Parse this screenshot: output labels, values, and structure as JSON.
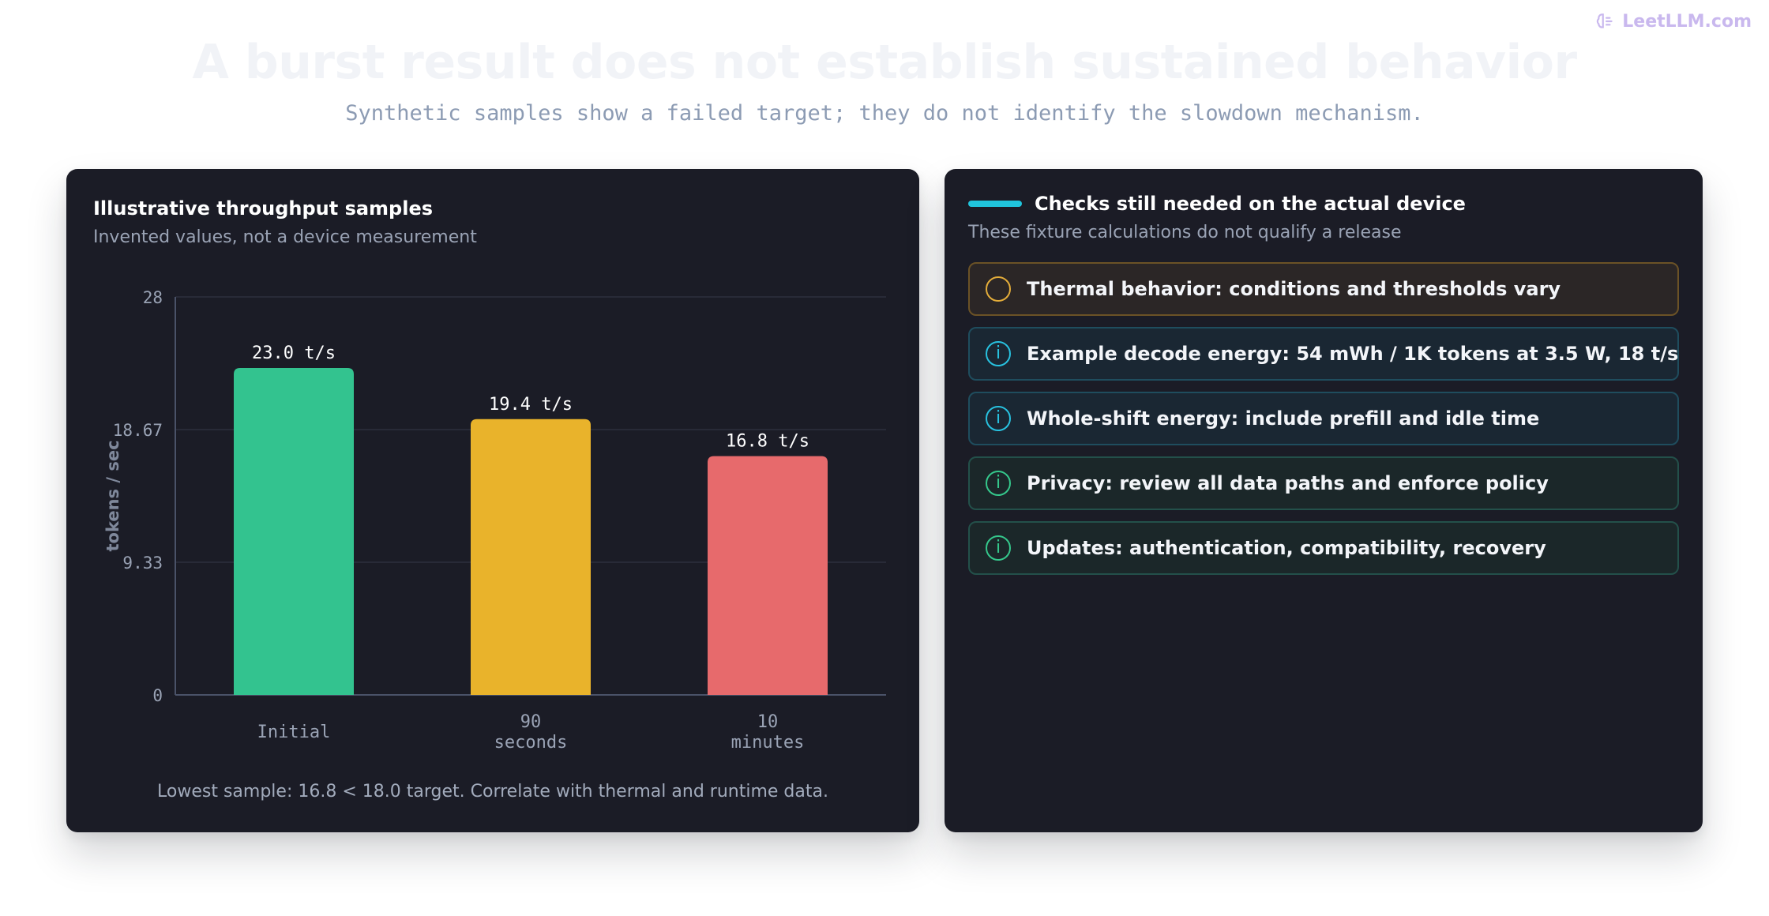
{
  "brand": {
    "label": "LeetLLM.com"
  },
  "header": {
    "title": "A burst result does not establish sustained behavior",
    "subtitle": "Synthetic samples show a failed target; they do not identify the slowdown mechanism."
  },
  "chart_data": {
    "type": "bar",
    "title": "Illustrative throughput samples",
    "subtitle": "Invented values, not a device measurement",
    "ylabel": "tokens / sec",
    "xlabel": "",
    "ylim": [
      0,
      28
    ],
    "yticks": [
      0,
      9.33,
      18.67,
      28
    ],
    "ytick_labels": [
      "0",
      "9.33",
      "18.67",
      "28"
    ],
    "grid": true,
    "categories": [
      [
        "Initial"
      ],
      [
        "90",
        "seconds"
      ],
      [
        "10",
        "minutes"
      ]
    ],
    "values": [
      23.0,
      19.4,
      16.8
    ],
    "data_labels": [
      "23.0 t/s",
      "19.4 t/s",
      "16.8 t/s"
    ],
    "colors": [
      "#33c38f",
      "#e9b32b",
      "#e76a6c"
    ],
    "footnote": "Lowest sample: 16.8 < 18.0 target. Correlate with thermal and runtime data."
  },
  "panel": {
    "title": "Checks still needed on the actual device",
    "subtitle": "These fixture calculations do not qualify a release",
    "accent": "#20c4dc",
    "checks": [
      {
        "text": "Thermal behavior: conditions and thresholds vary",
        "icon": "circle-warning-icon",
        "glyph": "",
        "color": "#e4ad3a",
        "bg": "#2b2626",
        "border": "#6b5226"
      },
      {
        "text": "Example decode energy: 54 mWh / 1K tokens at 3.5 W, 18 t/s",
        "icon": "info-icon",
        "glyph": "i",
        "color": "#28c2e0",
        "bg": "#1a2733",
        "border": "#1f4d5e"
      },
      {
        "text": "Whole-shift energy: include prefill and idle time",
        "icon": "info-icon",
        "glyph": "i",
        "color": "#28c2e0",
        "bg": "#1a2733",
        "border": "#1f4d5e"
      },
      {
        "text": "Privacy: review all data paths and enforce policy",
        "icon": "info-icon",
        "glyph": "i",
        "color": "#35c88c",
        "bg": "#1b2729",
        "border": "#23504a"
      },
      {
        "text": "Updates: authentication, compatibility, recovery",
        "icon": "info-icon",
        "glyph": "i",
        "color": "#35c88c",
        "bg": "#1b2729",
        "border": "#23504a"
      }
    ]
  }
}
